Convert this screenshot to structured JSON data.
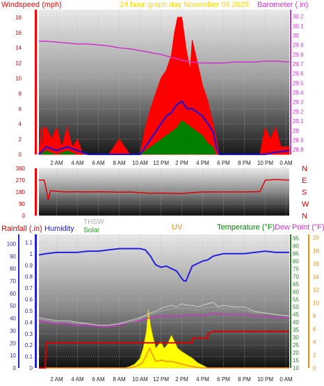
{
  "header": {
    "windspeed_label": "Windspeed (mph)",
    "center_label": "24 hour graph day   November 09 2025",
    "barometer_label": "Barometer (.in)"
  },
  "lower_header": {
    "rainfall_label": "Rainfall (.in)",
    "humidity_label": "Humidity",
    "thsw_label": "THSW",
    "solar_label": "Solar",
    "uv_label": "UV",
    "temperature_label": "Temperature (°F)",
    "dewpoint_label": "Dew Point (°F)"
  },
  "colors": {
    "wind_gust": "#ff0000",
    "wind_avg": "#1010e0",
    "wind_green": "#008000",
    "barometer": "#cc33cc",
    "direction": "#e00000",
    "rain": "#dd0000",
    "humidity": "#2020e0",
    "thsw": "#a0a0a0",
    "temperature": "#9a9a9a",
    "dewpoint": "#cc33cc",
    "uv": "#ff8800",
    "solar": "#ffff00",
    "title_yellow": "#ffd400",
    "temp_green": "#008000"
  },
  "chart_data": [
    {
      "type": "area",
      "name": "wind-barometer",
      "x_ticks": [
        "2 AM",
        "4 AM",
        "6 AM",
        "8 AM",
        "10 AM",
        "12 PM",
        "2 PM",
        "4 PM",
        "6 PM",
        "8 PM",
        "10 PM",
        "0 AM"
      ],
      "y_left_ticks": [
        "0",
        "2",
        "4",
        "6",
        "8",
        "10",
        "12",
        "14",
        "16",
        "18"
      ],
      "y_left_range": [
        0,
        19
      ],
      "y_right_ticks": [
        "28.8",
        "28.9",
        "29",
        "29.1",
        "29.2",
        "29.3",
        "29.4",
        "29.5",
        "29.6",
        "29.7",
        "29.8",
        "29.9",
        "30",
        "30.1",
        "30.2"
      ],
      "y_right_range": [
        28.75,
        30.27
      ],
      "hours_range": [
        0.3,
        24.3
      ],
      "gust_envelope": {
        "hours": [
          0.3,
          0.5,
          0.6,
          0.7,
          1.0,
          1.5,
          2.0,
          2.5,
          3.0,
          3.5,
          4.0,
          4.5,
          5.0,
          5.5,
          6.0,
          6.5,
          7.0,
          7.5,
          8.0,
          8.5,
          9.0,
          9.5,
          10.0,
          10.5,
          11.0,
          11.5,
          12.0,
          12.5,
          13.0,
          13.3,
          13.6,
          14.0,
          14.4,
          14.8,
          15.0,
          15.5,
          16.0,
          16.5,
          17.0,
          17.3,
          17.6,
          18.0,
          18.5,
          19.0,
          19.5,
          20.0,
          20.5,
          21.0,
          21.5,
          22.0,
          22.5,
          23.0,
          23.5,
          24.0,
          24.3
        ],
        "values": [
          0,
          3.5,
          0,
          3.5,
          3.5,
          2,
          3.5,
          1,
          3.5,
          1,
          2,
          0,
          0,
          0,
          0,
          0,
          0,
          1,
          2,
          1,
          0,
          0,
          0,
          3.5,
          6,
          8,
          10,
          11,
          13,
          16,
          18,
          18,
          14,
          11,
          15,
          12,
          9,
          7,
          4,
          2,
          0,
          0,
          0,
          0,
          0,
          0,
          0,
          0,
          0,
          3.5,
          2,
          3.5,
          1,
          1,
          1
        ]
      },
      "avg_line": {
        "hours": [
          0.3,
          1,
          2,
          3,
          4,
          5,
          6,
          7,
          8,
          9,
          10,
          10.5,
          11,
          11.5,
          12,
          12.5,
          13,
          13.5,
          14,
          14.5,
          15,
          15.5,
          16,
          16.5,
          17,
          17.3,
          17.6,
          18,
          20,
          22,
          23,
          24.3
        ],
        "values": [
          0,
          1,
          0.5,
          1,
          0.5,
          0,
          0,
          0,
          0,
          0,
          0,
          1,
          2,
          3,
          4,
          5,
          5.5,
          6.5,
          7,
          6,
          6,
          5.5,
          5,
          4,
          3,
          1,
          0,
          0,
          0,
          0,
          0.3,
          0.5
        ]
      },
      "green_fill": {
        "hours": [
          0.3,
          1,
          2,
          3,
          4,
          5,
          6,
          7,
          8,
          9,
          10,
          10.5,
          11,
          11.5,
          12,
          12.5,
          13,
          13.5,
          14,
          14.5,
          15,
          15.5,
          16,
          16.5,
          17,
          17.3,
          18,
          24.3
        ],
        "values": [
          0,
          0.5,
          0,
          0.5,
          0,
          0,
          0,
          0,
          0,
          0,
          0,
          0.5,
          1,
          1.5,
          2,
          2.5,
          3,
          3.5,
          4.5,
          4,
          3.5,
          3,
          2.5,
          1.5,
          1,
          0,
          0,
          0
        ]
      },
      "barometer": {
        "hours": [
          0.3,
          1,
          2,
          3,
          4,
          5,
          6,
          7,
          8,
          9,
          10,
          11,
          12,
          13,
          14,
          15,
          16,
          17,
          18,
          19,
          20,
          21,
          22,
          23,
          24.3
        ],
        "values": [
          29.94,
          29.94,
          29.93,
          29.92,
          29.91,
          29.91,
          29.9,
          29.89,
          29.87,
          29.86,
          29.84,
          29.82,
          29.8,
          29.77,
          29.74,
          29.72,
          29.71,
          29.71,
          29.71,
          29.72,
          29.72,
          29.72,
          29.73,
          29.73,
          29.72
        ]
      }
    },
    {
      "type": "line",
      "name": "wind-direction",
      "y_left_ticks": [
        "0",
        "90",
        "180",
        "270",
        "360"
      ],
      "y_range": [
        0,
        360
      ],
      "direction_labels": [
        "N",
        "W",
        "S",
        "E",
        "N"
      ],
      "hours_range": [
        0.3,
        24.3
      ],
      "direction": {
        "hours": [
          0.3,
          0.8,
          1.0,
          1.2,
          1.4,
          2,
          3,
          4,
          5,
          6,
          7,
          8,
          9,
          10,
          11,
          12,
          13,
          14,
          15,
          16,
          17,
          18,
          19,
          20,
          21,
          21.5,
          22,
          23,
          24.3
        ],
        "values": [
          270,
          270,
          200,
          120,
          190,
          185,
          180,
          182,
          180,
          182,
          180,
          178,
          180,
          175,
          170,
          172,
          170,
          168,
          175,
          180,
          180,
          180,
          180,
          180,
          182,
          183,
          270,
          275,
          270
        ]
      }
    },
    {
      "type": "line",
      "name": "temperature-humidity-rain",
      "x_ticks": [
        "2 AM",
        "4 AM",
        "6 AM",
        "8 AM",
        "10 AM",
        "12 PM",
        "2 PM",
        "4 PM",
        "6 PM",
        "8 PM",
        "10 PM",
        "0 AM"
      ],
      "rain_ticks": [
        "0",
        "0.1",
        "0.2",
        "0.3",
        "0.4",
        "0.5",
        "0.6",
        "0.7",
        "0.8",
        "0.9",
        "1",
        "1.1"
      ],
      "humidity_ticks": [
        "0",
        "10",
        "20",
        "30",
        "40",
        "50",
        "60",
        "70",
        "80",
        "90",
        "100"
      ],
      "temp_ticks": [
        "10",
        "15",
        "20",
        "25",
        "30",
        "35",
        "40",
        "45",
        "50",
        "55",
        "60",
        "65",
        "70",
        "75",
        "80",
        "85",
        "90",
        "95"
      ],
      "uv_ticks": [
        "0",
        "2",
        "4",
        "6",
        "8",
        "10",
        "12",
        "14",
        "16",
        "18",
        "20"
      ],
      "rain_range": [
        0,
        1.17
      ],
      "temp_range": [
        10,
        97.5
      ],
      "uv_range": [
        0,
        20.5
      ],
      "hours_range": [
        0.3,
        24.3
      ],
      "humidity": {
        "hours": [
          0.3,
          1,
          2,
          3,
          4,
          5,
          6,
          7,
          8,
          9,
          10,
          10.5,
          11,
          11.2,
          11.5,
          12,
          12.5,
          13,
          13.5,
          14,
          14.2,
          14.4,
          14.6,
          15,
          15.5,
          16,
          16.5,
          17,
          18,
          19,
          20,
          21,
          22,
          23,
          24.3
        ],
        "values": [
          91,
          92,
          93,
          93,
          93,
          94,
          94,
          95,
          96,
          96,
          96,
          95,
          90,
          87,
          83,
          81,
          82,
          80,
          78,
          72,
          70,
          70,
          74,
          82,
          84,
          86,
          87,
          90,
          92,
          92,
          92,
          93,
          94,
          93,
          93
        ]
      },
      "thsw": {
        "hours": [
          0.3,
          1,
          2,
          3,
          4,
          5,
          6,
          7,
          8,
          9,
          10,
          11,
          11.5,
          12,
          12.5,
          13,
          13.5,
          14,
          14.5,
          15,
          15.5,
          16,
          17,
          17.5,
          18,
          19,
          20,
          21,
          22,
          23,
          24.3
        ],
        "values": [
          43,
          42,
          41,
          41,
          40,
          39,
          38,
          38,
          39,
          41,
          43,
          46,
          47,
          49,
          50,
          51,
          50,
          52,
          51,
          51,
          50,
          51,
          53,
          50,
          51,
          50,
          50,
          47,
          46,
          45,
          44
        ]
      },
      "temperature": {
        "hours": [
          0.3,
          1,
          2,
          3,
          4,
          5,
          6,
          7,
          8,
          9,
          10,
          11,
          11.5,
          12,
          12.5,
          13,
          13.5,
          14,
          14.5,
          15,
          15.5,
          16,
          17,
          17.5,
          18,
          19,
          20,
          21,
          22,
          23,
          24.3
        ],
        "values": [
          42,
          41,
          40,
          40,
          39,
          39,
          38,
          38,
          39,
          40,
          42,
          45,
          46,
          47,
          48,
          49,
          49,
          49,
          49,
          49,
          48,
          49,
          50,
          49,
          49,
          49,
          48,
          46,
          46,
          45,
          44
        ]
      },
      "dewpoint": {
        "hours": [
          0.3,
          1,
          2,
          3,
          4,
          5,
          6,
          7,
          8,
          9,
          10,
          11,
          12,
          13,
          14,
          15,
          16,
          17,
          18,
          19,
          20,
          21,
          22,
          23,
          24.3
        ],
        "values": [
          41,
          40,
          39,
          39,
          38,
          38,
          37,
          37,
          38,
          40,
          41,
          43,
          44,
          44,
          44,
          45,
          44,
          46,
          45,
          45,
          45,
          44,
          44,
          43,
          43
        ]
      },
      "rain_cumulative": {
        "hours": [
          0.3,
          0.9,
          1.0,
          9.0,
          9.0,
          15.0,
          15.0,
          16.5,
          16.5,
          17.0,
          24.3
        ],
        "values": [
          0,
          0,
          0.22,
          0.22,
          0.22,
          0.22,
          0.26,
          0.26,
          0.3,
          0.32,
          0.32
        ]
      },
      "uv": {
        "hours": [
          0.3,
          8,
          9,
          9.5,
          10,
          10.3,
          10.6,
          10.9,
          11.2,
          11.5,
          12,
          12.5,
          13,
          13.5,
          14,
          14.5,
          15,
          16,
          24.3
        ],
        "values": [
          0,
          0,
          0,
          0.2,
          0.5,
          1,
          2,
          3,
          2,
          1,
          1.2,
          1,
          1,
          0.8,
          0.6,
          0.4,
          0.2,
          0,
          0
        ]
      },
      "solar": {
        "hours": [
          0.3,
          8,
          8.5,
          9,
          9.5,
          10,
          10.3,
          10.6,
          10.8,
          11,
          11.2,
          11.5,
          12,
          12.3,
          12.6,
          13,
          13.3,
          13.6,
          14,
          14.5,
          15,
          15.5,
          16,
          16.5,
          24.3
        ],
        "values": [
          0,
          0,
          0,
          0.2,
          0.6,
          1.5,
          3,
          5.5,
          9,
          6.5,
          5,
          3,
          4,
          3,
          3.5,
          5,
          4,
          3,
          2.5,
          2,
          1.5,
          0.8,
          0.4,
          0,
          0
        ]
      }
    }
  ]
}
